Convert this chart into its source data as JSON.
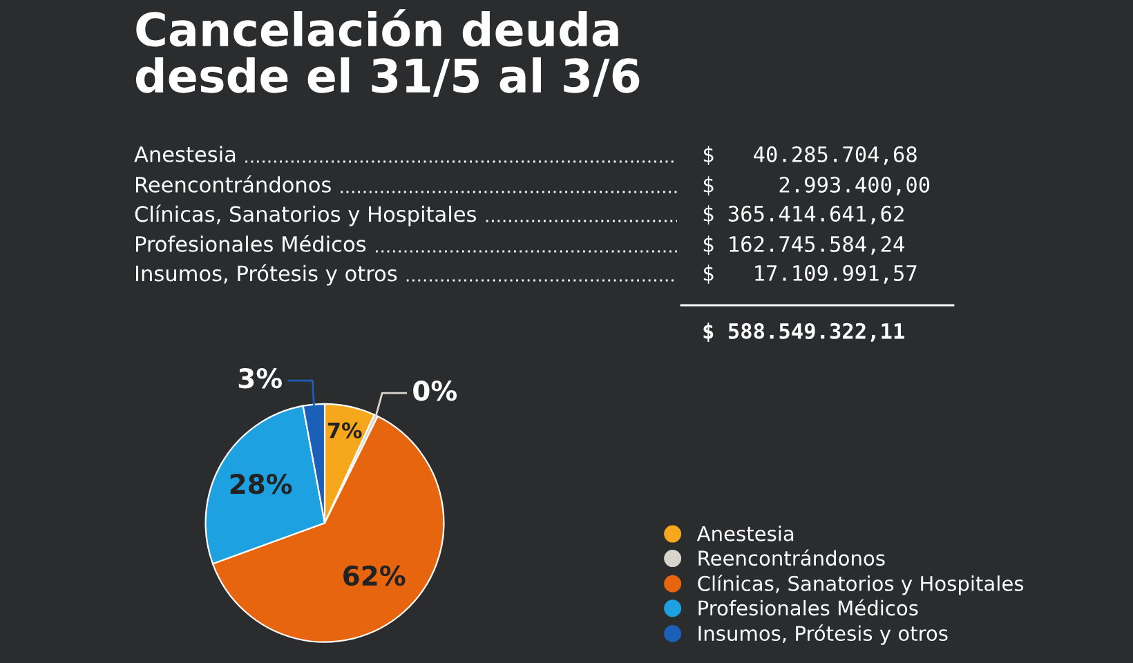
{
  "chart_data": {
    "type": "pie",
    "title": "Cancelación deuda\ndesde el 31/5 al 3/6",
    "categories": [
      "Anestesia",
      "Reencontrándonos",
      "Clínicas, Sanatorios y Hospitales",
      "Profesionales Médicos",
      "Insumos, Prótesis y otros"
    ],
    "values": [
      6.84,
      0.5,
      62.1,
      27.65,
      2.91
    ],
    "value_labels": [
      "7%",
      "0%",
      "62%",
      "28%",
      "3%"
    ],
    "colors": [
      "#f6a71c",
      "#d8d4cc",
      "#e8650f",
      "#1da1e0",
      "#1b5fb8"
    ],
    "annotations": [
      "$   40.285.704,68",
      "$     2.993.400,00",
      "$ 365.414.641,62",
      "$ 162.745.584,24",
      "$   17.109.991,57",
      "$ 588.549.322,11"
    ],
    "legend": "bottom right"
  }
}
